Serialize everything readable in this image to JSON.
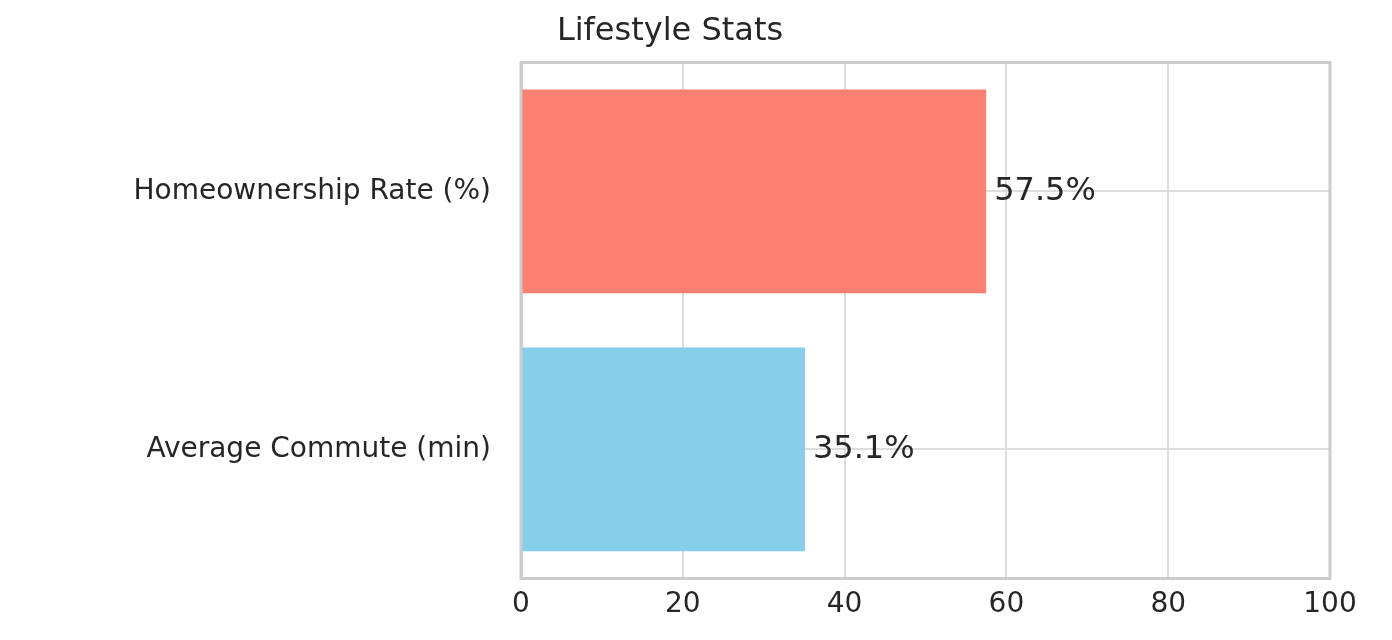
{
  "chart_data": {
    "type": "bar",
    "title": "Lifestyle Stats",
    "orientation": "horizontal",
    "categories": [
      "Homeownership Rate (%)",
      "Average Commute (min)"
    ],
    "values": [
      57.5,
      35.1
    ],
    "colors": [
      "#fa8072",
      "#87ceeb"
    ],
    "value_labels": [
      "57.5%",
      "35.1%"
    ],
    "xlim": [
      0,
      100
    ],
    "xticks": [
      0,
      20,
      40,
      60,
      80,
      100
    ],
    "grid": true,
    "legend": false
  }
}
